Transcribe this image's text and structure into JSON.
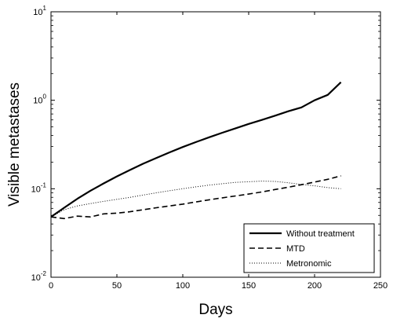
{
  "chart_data": {
    "type": "line",
    "xlabel": "Days",
    "ylabel": "Visible metastases",
    "xlim": [
      0,
      250
    ],
    "ylim": [
      0.01,
      10
    ],
    "yscale": "log",
    "grid": false,
    "legend_position": "bottom-right",
    "x_ticks": [
      "0",
      "50",
      "100",
      "150",
      "200",
      "250"
    ],
    "y_ticks": [
      {
        "value": 0.01,
        "base": "10",
        "exp": "-2"
      },
      {
        "value": 0.1,
        "base": "10",
        "exp": "-1"
      },
      {
        "value": 1,
        "base": "10",
        "exp": "0"
      },
      {
        "value": 10,
        "base": "10",
        "exp": "1"
      }
    ],
    "x": [
      0,
      10,
      20,
      30,
      40,
      50,
      60,
      70,
      80,
      90,
      100,
      110,
      120,
      130,
      140,
      150,
      160,
      170,
      180,
      190,
      200,
      210,
      220
    ],
    "series": [
      {
        "name": "Without treatment",
        "style": "solid",
        "color": "#000000",
        "values": [
          0.048,
          0.061,
          0.077,
          0.095,
          0.115,
          0.138,
          0.163,
          0.192,
          0.223,
          0.258,
          0.296,
          0.337,
          0.382,
          0.43,
          0.482,
          0.54,
          0.6,
          0.67,
          0.75,
          0.83,
          1.0,
          1.15,
          1.6
        ]
      },
      {
        "name": "MTD",
        "style": "dashed",
        "color": "#000000",
        "values": [
          0.048,
          0.046,
          0.049,
          0.048,
          0.052,
          0.053,
          0.055,
          0.058,
          0.061,
          0.064,
          0.067,
          0.071,
          0.075,
          0.079,
          0.083,
          0.087,
          0.092,
          0.098,
          0.104,
          0.111,
          0.119,
          0.128,
          0.14
        ]
      },
      {
        "name": "Metronomic",
        "style": "dotted",
        "color": "#000000",
        "values": [
          0.048,
          0.058,
          0.064,
          0.068,
          0.072,
          0.076,
          0.08,
          0.085,
          0.09,
          0.095,
          0.1,
          0.105,
          0.11,
          0.114,
          0.118,
          0.12,
          0.122,
          0.121,
          0.117,
          0.112,
          0.108,
          0.103,
          0.1
        ]
      }
    ]
  }
}
